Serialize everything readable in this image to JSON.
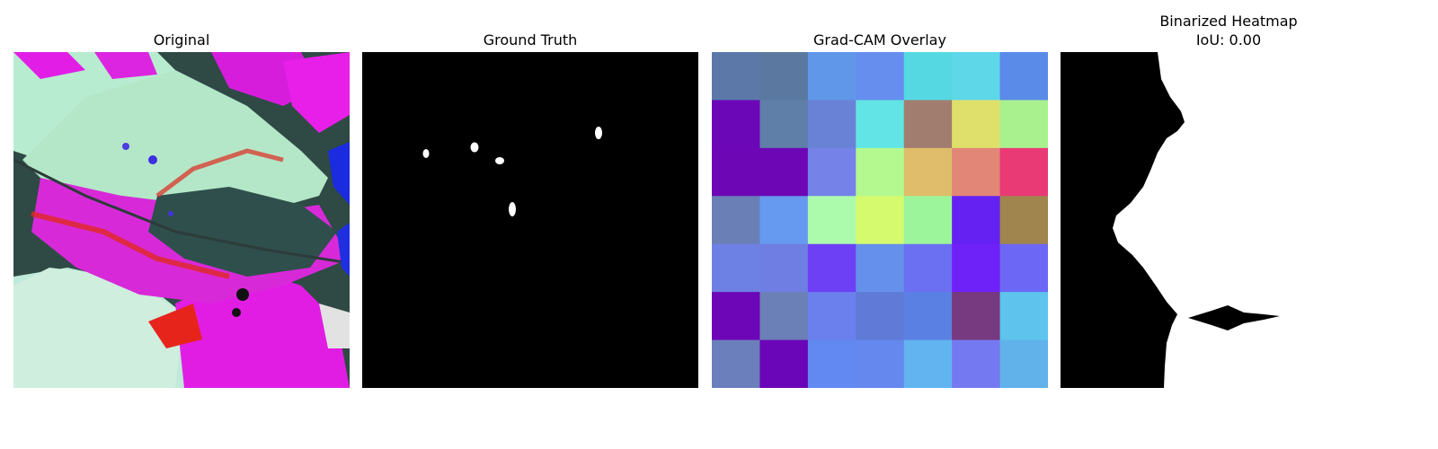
{
  "panels": {
    "original": {
      "title": "Original"
    },
    "ground_truth": {
      "title": "Ground Truth"
    },
    "gradcam": {
      "title": "Grad-CAM Overlay",
      "grid_colors": [
        [
          "#5b78a9",
          "#5b78a0",
          "#6097e8",
          "#658eef",
          "#55d8e2",
          "#5ed7e9",
          "#5b8be8"
        ],
        [
          "#6c07b7",
          "#5f7ea8",
          "#6a82d6",
          "#62e4e6",
          "#a17d6f",
          "#dfe06c",
          "#a9f08f"
        ],
        [
          "#6d07b6",
          "#6d06b5",
          "#7582e8",
          "#b3f98f",
          "#dfbd6a",
          "#e28677",
          "#e93a75"
        ],
        [
          "#6b7fb7",
          "#6699f0",
          "#acfbad",
          "#d5fa6e",
          "#9cf59a",
          "#6421f1",
          "#a0854f"
        ],
        [
          "#6d81e4",
          "#6f7ee2",
          "#6d40f5",
          "#6590ec",
          "#6b6ff2",
          "#6e22f8",
          "#6d67f5"
        ],
        [
          "#6d06b6",
          "#6b80b6",
          "#6b80ec",
          "#5f7bd7",
          "#5b80e3",
          "#77397f",
          "#5ec4ed"
        ],
        [
          "#6b7fbc",
          "#6a06b7",
          "#6189f1",
          "#6588ef",
          "#61b4ef",
          "#7479f1",
          "#61b2ea"
        ]
      ]
    },
    "binarized": {
      "title_line1": "Binarized Heatmap",
      "title_line2": "IoU: 0.00"
    }
  }
}
